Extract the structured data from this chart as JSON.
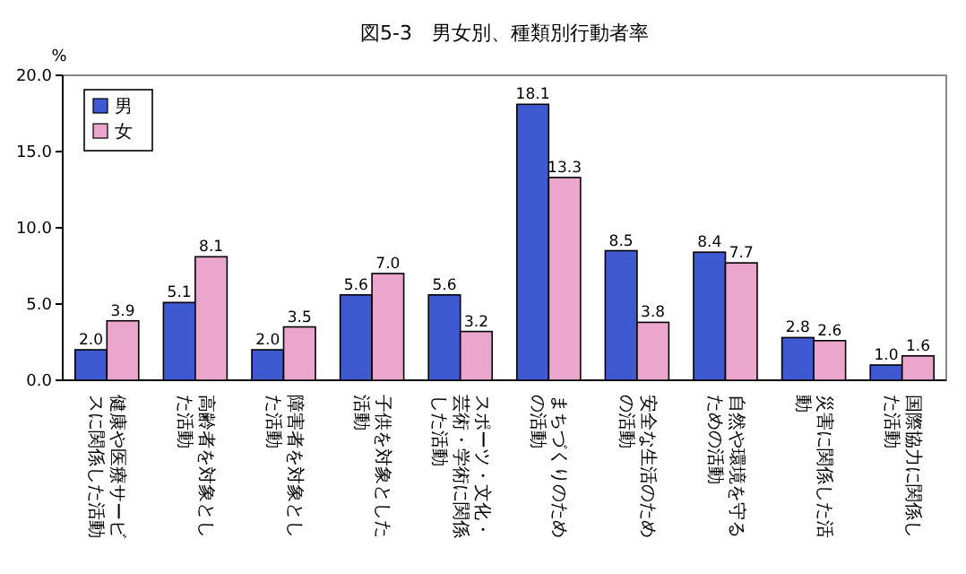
{
  "chart_data": {
    "type": "bar",
    "title": "図5-3　男女別、種類別行動者率",
    "ylabel": "%",
    "categories": [
      "健康や医療サービスに関係した活動",
      "高齢者を対象とした活動",
      "障害者を対象とした活動",
      "子供を対象とした活動",
      "スポーツ・文化・芸術・学術に関係した活動",
      "まちづくりのための活動",
      "安全な生活のための活動",
      "自然や環境を守るための活動",
      "災害に関係した活動",
      "国際協力に関係した活動"
    ],
    "series": [
      {
        "name": "男",
        "color": "#3f5ad0",
        "values": [
          2.0,
          5.1,
          2.0,
          5.6,
          5.6,
          18.1,
          8.5,
          8.4,
          2.8,
          1.0
        ],
        "value_labels": [
          "2.0",
          "5.1",
          "2.0",
          "5.6",
          "5.6",
          "18.1",
          "8.5",
          "8.4",
          "2.8",
          "1.0"
        ]
      },
      {
        "name": "女",
        "color": "#eaa6cc",
        "values": [
          3.9,
          8.1,
          3.5,
          7.0,
          3.2,
          13.3,
          3.8,
          7.7,
          2.6,
          1.6
        ],
        "value_labels": [
          "3.9",
          "8.1",
          "3.5",
          "7.0",
          "3.2",
          "13.3",
          "3.8",
          "7.7",
          "2.6",
          "1.6"
        ]
      }
    ],
    "ylim": [
      0,
      20
    ],
    "yticks": [
      {
        "value": 0,
        "label": "0.0"
      },
      {
        "value": 5,
        "label": "5.0"
      },
      {
        "value": 10,
        "label": "10.0"
      },
      {
        "value": 15,
        "label": "15.0"
      },
      {
        "value": 20,
        "label": "20.0"
      }
    ],
    "grid": false,
    "legend": "top left"
  }
}
